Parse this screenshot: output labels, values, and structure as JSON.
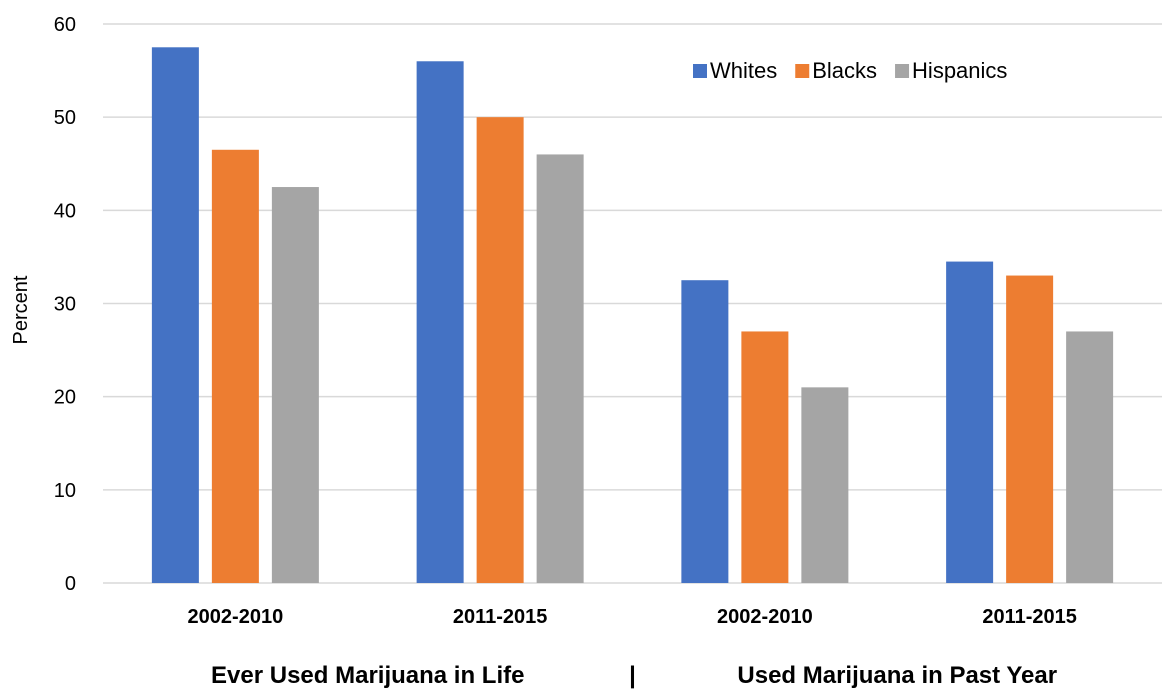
{
  "chart_data": {
    "type": "bar",
    "title": "",
    "xlabel": "",
    "ylabel": "Percent",
    "ylim": [
      0,
      60
    ],
    "yticks": [
      0,
      10,
      20,
      30,
      40,
      50,
      60
    ],
    "grid": true,
    "legend_position": "top-right",
    "categories": [
      "2002-2010",
      "2011-2015",
      "2002-2010",
      "2011-2015"
    ],
    "groups": [
      {
        "label": "Ever Used Marijuana in Life",
        "categories": [
          0,
          1
        ]
      },
      {
        "label": "Used Marijuana in Past Year",
        "categories": [
          2,
          3
        ]
      }
    ],
    "group_separator": "|",
    "series": [
      {
        "name": "Whites",
        "color": "#4472c4",
        "values": [
          57.5,
          56,
          32.5,
          34.5
        ]
      },
      {
        "name": "Blacks",
        "color": "#ed7d31",
        "values": [
          46.5,
          50,
          27,
          33
        ]
      },
      {
        "name": "Hispanics",
        "color": "#a5a5a5",
        "values": [
          42.5,
          46,
          21,
          27
        ]
      }
    ]
  }
}
